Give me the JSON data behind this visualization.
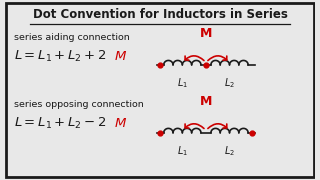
{
  "title": "Dot Convention for Inductors in Series",
  "bg_color": "#e8e8e8",
  "border_color": "#1a1a1a",
  "text_color": "#1a1a1a",
  "red_color": "#cc0000",
  "aiding_label": "series aiding connection",
  "opposing_label": "series opposing connection",
  "M_label": "M"
}
